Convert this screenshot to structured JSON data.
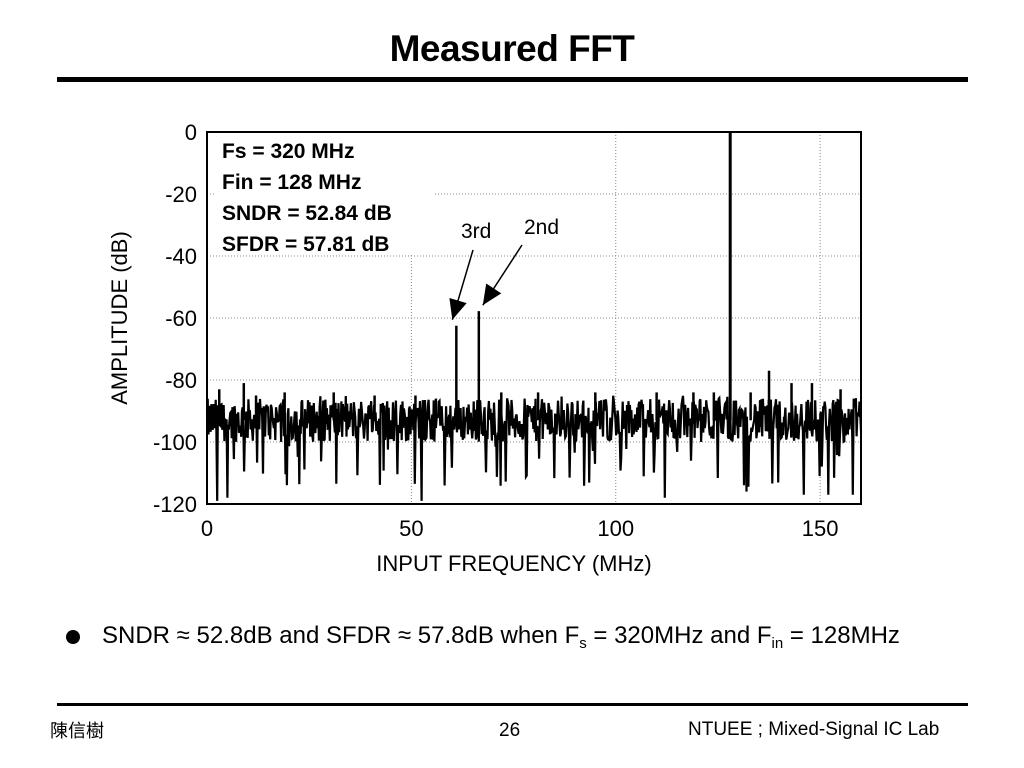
{
  "slide": {
    "title": "Measured FFT",
    "footer_left": "陳信樹",
    "page_number": "26",
    "footer_right": "NTUEE ; Mixed-Signal IC Lab"
  },
  "bullet": {
    "part1": "SNDR ≈ 52.8dB  and SFDR ≈ 57.8dB when F",
    "sub1": "s",
    "part2": " = 320MHz and F",
    "sub2": "in",
    "part3": " = 128MHz"
  },
  "chart_data": {
    "type": "line",
    "xlabel": "INPUT FREQUENCY (MHz)",
    "ylabel": "AMPLITUDE (dB)",
    "xlim": [
      0,
      160
    ],
    "ylim": [
      -120,
      0
    ],
    "x_ticks": [
      0,
      50,
      100,
      150
    ],
    "y_ticks": [
      0,
      -20,
      -40,
      -60,
      -80,
      -100,
      -120
    ],
    "grid": true,
    "info_box": [
      "Fs = 320 MHz",
      "Fin = 128 MHz",
      "SNDR = 52.84 dB",
      "SFDR = 57.81 dB"
    ],
    "annotations": [
      {
        "text": "3rd",
        "x": 61,
        "y": -62.5
      },
      {
        "text": "2nd",
        "x": 66.5,
        "y": -57.8
      }
    ],
    "noise_floor": {
      "x_range": [
        0,
        160
      ],
      "typical_db": -93,
      "min_db": -120,
      "max_db": -85
    },
    "spurs": [
      {
        "x": 3,
        "y": -83
      },
      {
        "x": 9,
        "y": -81
      },
      {
        "x": 12,
        "y": -85
      },
      {
        "x": 19,
        "y": -84
      },
      {
        "x": 31,
        "y": -84
      },
      {
        "x": 41,
        "y": -85
      },
      {
        "x": 51,
        "y": -85
      },
      {
        "x": 56,
        "y": -86
      },
      {
        "x": 61,
        "y": -62.5
      },
      {
        "x": 66.5,
        "y": -57.8
      },
      {
        "x": 72,
        "y": -84
      },
      {
        "x": 81,
        "y": -84
      },
      {
        "x": 95,
        "y": -84
      },
      {
        "x": 110,
        "y": -84
      },
      {
        "x": 119,
        "y": -84
      },
      {
        "x": 124,
        "y": -84
      },
      {
        "x": 128,
        "y": 0
      },
      {
        "x": 133,
        "y": -84
      },
      {
        "x": 137.5,
        "y": -77
      },
      {
        "x": 143,
        "y": -81
      },
      {
        "x": 148,
        "y": -81
      },
      {
        "x": 155,
        "y": -83
      }
    ],
    "deep_dips": [
      {
        "x": 2.5,
        "y": -119
      },
      {
        "x": 5,
        "y": -118
      },
      {
        "x": 52.5,
        "y": -119
      },
      {
        "x": 112,
        "y": -118
      },
      {
        "x": 132,
        "y": -116
      },
      {
        "x": 146,
        "y": -117
      },
      {
        "x": 152,
        "y": -117
      },
      {
        "x": 158,
        "y": -117
      }
    ]
  }
}
